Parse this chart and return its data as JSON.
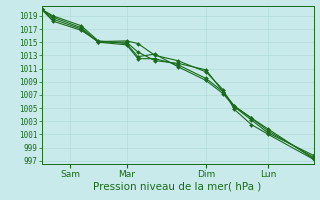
{
  "background_color": "#c8eaea",
  "grid_color": "#b0d8d8",
  "line_color": "#1a6b1a",
  "marker_color": "#1a6b1a",
  "xlabel": "Pression niveau de la mer( hPa )",
  "ylim": [
    996.5,
    1020.5
  ],
  "yticks": [
    997,
    999,
    1001,
    1003,
    1005,
    1007,
    1009,
    1011,
    1013,
    1015,
    1017,
    1019
  ],
  "xtick_labels": [
    "Sam",
    "Mar",
    "Dim",
    "Lun"
  ],
  "series": [
    {
      "x": [
        0,
        4,
        14,
        20,
        30,
        34,
        40,
        48,
        58,
        64,
        68,
        74,
        80,
        96
      ],
      "y": [
        1020.0,
        1019.0,
        1017.5,
        1015.2,
        1014.8,
        1012.8,
        1013.2,
        1011.3,
        1009.2,
        1007.2,
        1005.2,
        1003.2,
        1001.2,
        997.8
      ]
    },
    {
      "x": [
        0,
        4,
        14,
        20,
        30,
        34,
        40,
        48,
        58,
        64,
        68,
        74,
        80,
        96
      ],
      "y": [
        1020.0,
        1018.8,
        1017.2,
        1015.0,
        1014.6,
        1012.5,
        1012.5,
        1011.6,
        1009.5,
        1007.5,
        1005.3,
        1003.5,
        1001.5,
        997.5
      ]
    },
    {
      "x": [
        0,
        4,
        14,
        20,
        30,
        34,
        40,
        48,
        58,
        64,
        68,
        74,
        80,
        96
      ],
      "y": [
        1020.0,
        1018.5,
        1017.0,
        1015.0,
        1015.0,
        1013.5,
        1012.2,
        1011.8,
        1010.8,
        1007.5,
        1005.3,
        1003.5,
        1001.8,
        997.3
      ]
    },
    {
      "x": [
        0,
        4,
        14,
        20,
        30,
        34,
        40,
        48,
        58,
        64,
        68,
        74,
        80,
        96
      ],
      "y": [
        1020.0,
        1018.2,
        1016.8,
        1015.1,
        1015.2,
        1014.8,
        1013.0,
        1012.2,
        1010.5,
        1007.8,
        1004.8,
        1002.5,
        1001.0,
        997.2
      ]
    }
  ],
  "xtick_hours": [
    10,
    30,
    58,
    80
  ],
  "xlim": [
    0,
    96
  ],
  "label_fontsize": 5.5,
  "xlabel_fontsize": 7.5,
  "tick_labelsize": 5.5
}
